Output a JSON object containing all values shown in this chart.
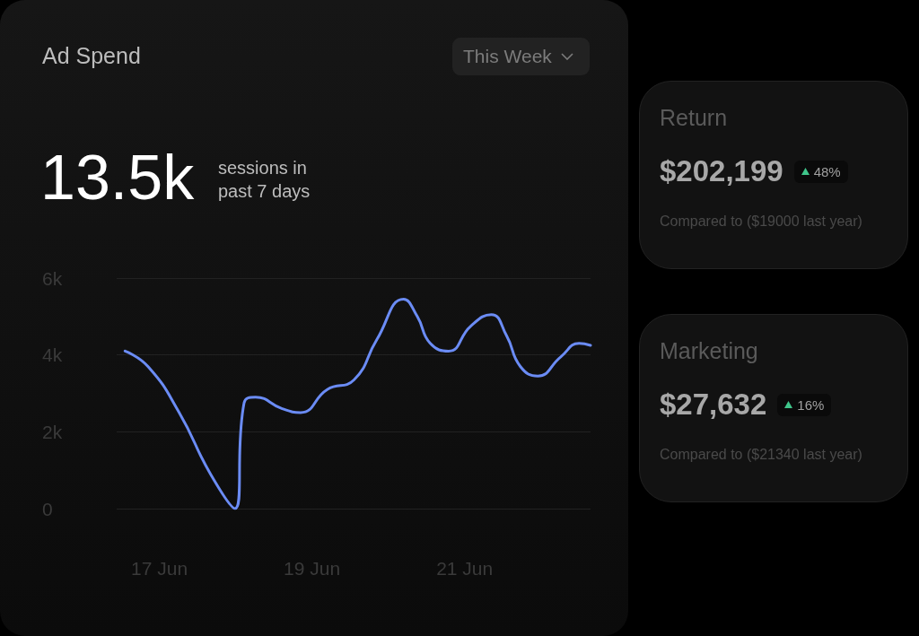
{
  "chart_data": [
    {
      "type": "line",
      "title": "Ad Spend",
      "annotations": [
        "13.5k",
        "sessions in past 7 days",
        "This Week"
      ],
      "x": [
        "--06-16T13:12",
        "--06-16T20:24",
        "--06-17T06:14",
        "--06-17T16:05",
        "--06-17T23:46",
        "--06-18T02:38",
        "--06-18T06:14",
        "--06-18T14:38",
        "--06-18T20:24",
        "--06-19T04:48",
        "--06-19T13:12",
        "--06-19T20:24",
        "--06-20T04:48",
        "--06-20T09:07",
        "--06-20T13:12",
        "--06-20T18:58",
        "--06-21T01:55",
        "--06-21T08:24",
        "--06-21T13:12",
        "--06-21T17:31",
        "--06-21T23:02",
        "--06-22T06:14",
        "--06-22T12:00",
        "--06-22T15:36"
      ],
      "series": [
        {
          "color": "#6b8cf5",
          "values": [
            4100,
            3700,
            2500,
            900,
            0,
            2750,
            2900,
            2600,
            2500,
            3100,
            3350,
            4400,
            5450,
            5000,
            4300,
            4100,
            4750,
            5050,
            4500,
            3700,
            3450,
            3950,
            4300,
            4250
          ]
        }
      ],
      "xlim": [
        "--06-16T10:34",
        "--06-22T15:36"
      ],
      "xticks": [
        {
          "value": "--06-17",
          "label": "17 Jun"
        },
        {
          "value": "--06-19",
          "label": "19 Jun"
        },
        {
          "value": "--06-21",
          "label": "21 Jun"
        }
      ],
      "ylim": [
        0,
        6000
      ],
      "yticks": [
        0,
        {
          "value": 2000,
          "label": "2k"
        },
        {
          "value": 4000,
          "label": "4k"
        },
        {
          "value": 6000,
          "label": "6k"
        }
      ],
      "grid": "y",
      "marker": "none",
      "line_style": "solid"
    },
    {
      "type": "other",
      "title": "Return",
      "annotations": [
        "$202,199",
        "48%",
        "Compared to ($19000 last year)"
      ]
    },
    {
      "type": "other",
      "title": "Marketing",
      "annotations": [
        "$27,632",
        "16%",
        "Compared to ($21340 last year)"
      ]
    }
  ]
}
